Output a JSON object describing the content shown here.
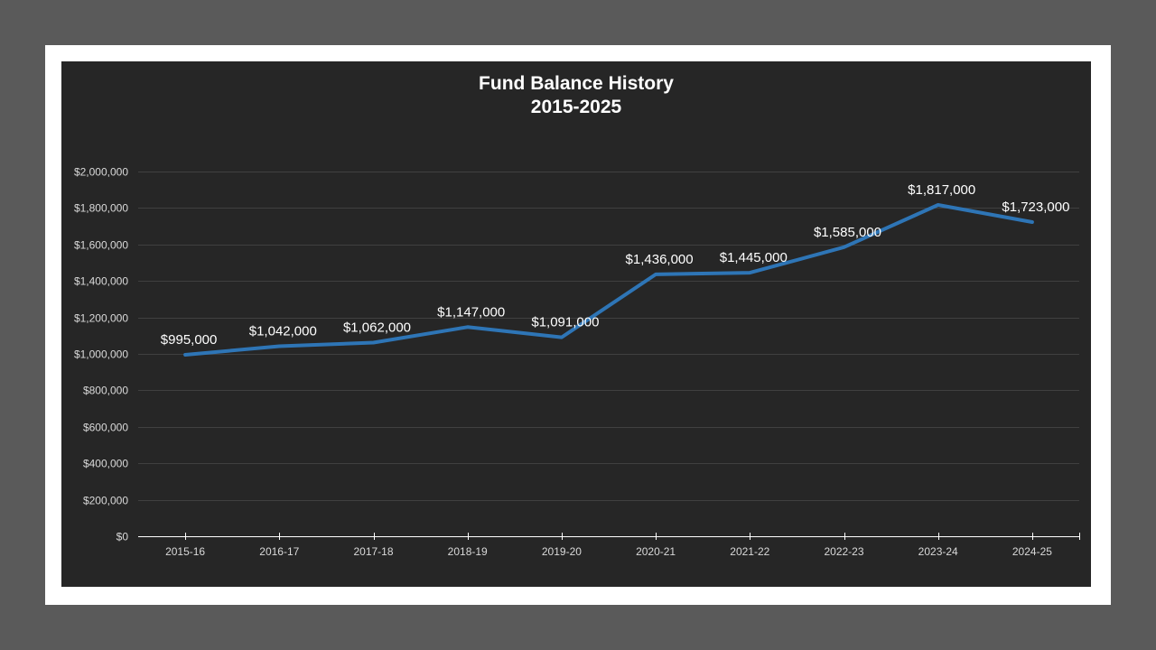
{
  "title_line1": "Fund Balance History",
  "title_line2": "2015-2025",
  "colors": {
    "background": "#5a5a5a",
    "frame": "#ffffff",
    "panel": "#262626",
    "line": "#2e75b6",
    "gridline": "#404040",
    "axis": "#ffffff",
    "text": "#d9d9d9"
  },
  "chart_data": {
    "type": "line",
    "title": "Fund Balance History 2015-2025",
    "xlabel": "",
    "ylabel": "",
    "categories": [
      "2015-16",
      "2016-17",
      "2017-18",
      "2018-19",
      "2019-20",
      "2020-21",
      "2021-22",
      "2022-23",
      "2023-24",
      "2024-25"
    ],
    "series": [
      {
        "name": "Fund Balance",
        "values": [
          995000,
          1042000,
          1062000,
          1147000,
          1091000,
          1436000,
          1445000,
          1585000,
          1817000,
          1723000
        ],
        "labels": [
          "$995,000",
          "$1,042,000",
          "$1,062,000",
          "$1,147,000",
          "$1,091,000",
          "$1,436,000",
          "$1,445,000",
          "$1,585,000",
          "$1,817,000",
          "$1,723,000"
        ]
      }
    ],
    "ylim": [
      0,
      2000000
    ],
    "yticks": [
      0,
      200000,
      400000,
      600000,
      800000,
      1000000,
      1200000,
      1400000,
      1600000,
      1800000,
      2000000
    ],
    "ytick_labels": [
      "$0",
      "$200,000",
      "$400,000",
      "$600,000",
      "$800,000",
      "$1,000,000",
      "$1,200,000",
      "$1,400,000",
      "$1,600,000",
      "$1,800,000",
      "$2,000,000"
    ],
    "grid": true,
    "legend": "none",
    "data_labels": true
  }
}
